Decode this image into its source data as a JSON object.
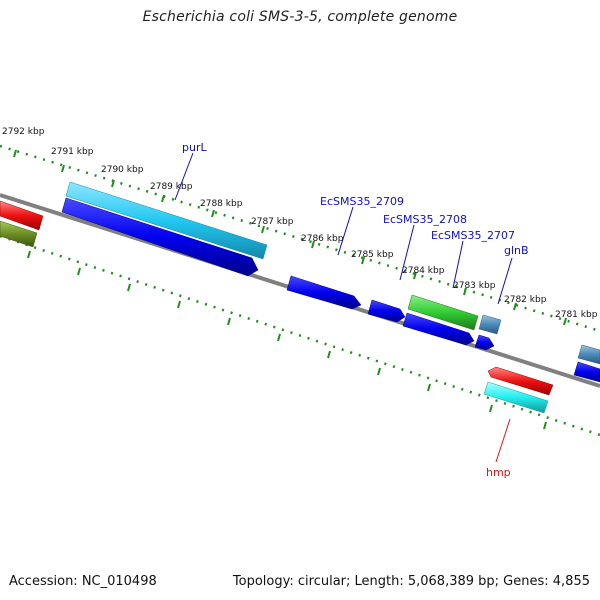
{
  "title": "Escherichia coli SMS-3-5, complete genome",
  "footer": {
    "accession": "Accession: NC_010498",
    "summary": "Topology: circular; Length: 5,068,389 bp; Genes: 4,855"
  },
  "scale_labels": [
    "2792 kbp",
    "2791 kbp",
    "2790 kbp",
    "2789 kbp",
    "2788 kbp",
    "2787 kbp",
    "2786 kbp",
    "2785 kbp",
    "2784 kbp",
    "2783 kbp",
    "2782 kbp",
    "2781 kbp"
  ],
  "genes": [
    {
      "name": "purL",
      "label_color": "#1010c0"
    },
    {
      "name": "EcSMS35_2709",
      "label_color": "#1010c0"
    },
    {
      "name": "EcSMS35_2708",
      "label_color": "#1010c0"
    },
    {
      "name": "EcSMS35_2707",
      "label_color": "#1010c0"
    },
    {
      "name": "glnB",
      "label_color": "#1010c0"
    },
    {
      "name": "hmp",
      "label_color": "#e01010"
    }
  ],
  "colors": {
    "forward_cds": "#0000ee",
    "cyan_feature": "#22c8f0",
    "green_feature": "#33cc33",
    "steel_feature": "#4a8ab8",
    "red_feature": "#ee1111",
    "olive_feature": "#6b8e23",
    "backbone": "#808080",
    "tick": "#228b22"
  }
}
